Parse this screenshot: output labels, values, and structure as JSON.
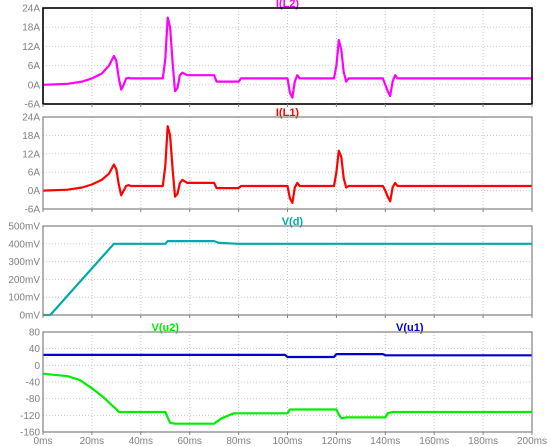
{
  "chart_data": [
    {
      "type": "line",
      "series": [
        {
          "name": "I(L2)",
          "color": "#ff00ff",
          "points": [
            [
              0,
              0
            ],
            [
              10,
              0.3
            ],
            [
              16,
              1
            ],
            [
              20,
              2
            ],
            [
              24,
              3.5
            ],
            [
              27,
              6
            ],
            [
              29,
              9
            ],
            [
              30,
              7.5
            ],
            [
              31,
              2
            ],
            [
              32,
              -1.5
            ],
            [
              33,
              0
            ],
            [
              34,
              2
            ],
            [
              35,
              2.2
            ],
            [
              36,
              2
            ],
            [
              49,
              2
            ],
            [
              50,
              8
            ],
            [
              51,
              21
            ],
            [
              52,
              18
            ],
            [
              53,
              7
            ],
            [
              54,
              -2
            ],
            [
              55,
              -1
            ],
            [
              56,
              3
            ],
            [
              57,
              3.8
            ],
            [
              59,
              3
            ],
            [
              60,
              3
            ],
            [
              70,
              3
            ],
            [
              71,
              1
            ],
            [
              72,
              1
            ],
            [
              80,
              1
            ],
            [
              81,
              2
            ],
            [
              82,
              2
            ],
            [
              99,
              2
            ],
            [
              100,
              2
            ],
            [
              101,
              -2.5
            ],
            [
              102,
              -4
            ],
            [
              103,
              1
            ],
            [
              104,
              3
            ],
            [
              105,
              2
            ],
            [
              106,
              2
            ],
            [
              119,
              2
            ],
            [
              120,
              6
            ],
            [
              121,
              14
            ],
            [
              122,
              11
            ],
            [
              123,
              4
            ],
            [
              124,
              1
            ],
            [
              125,
              2
            ],
            [
              139,
              2
            ],
            [
              140,
              0
            ],
            [
              141,
              -2
            ],
            [
              142,
              -3.5
            ],
            [
              143,
              1
            ],
            [
              144,
              3
            ],
            [
              145,
              2
            ],
            [
              200,
              2
            ]
          ]
        }
      ],
      "xlim": [
        0,
        200
      ],
      "ylim": [
        -6,
        24
      ],
      "yticks": [
        "24A",
        "18A",
        "12A",
        "6A",
        "0A",
        "-6A"
      ],
      "legend": "top-center"
    },
    {
      "type": "line",
      "series": [
        {
          "name": "I(L1)",
          "color": "#ff0000",
          "points": [
            [
              0,
              0
            ],
            [
              10,
              0.3
            ],
            [
              16,
              1
            ],
            [
              20,
              2
            ],
            [
              24,
              3.5
            ],
            [
              27,
              5.5
            ],
            [
              29,
              8.5
            ],
            [
              30,
              7
            ],
            [
              31,
              2
            ],
            [
              32,
              -1.5
            ],
            [
              33,
              0
            ],
            [
              34,
              1.5
            ],
            [
              35,
              1.8
            ],
            [
              36,
              1.5
            ],
            [
              49,
              1.5
            ],
            [
              50,
              8
            ],
            [
              51,
              21
            ],
            [
              52,
              18
            ],
            [
              53,
              7
            ],
            [
              54,
              -2
            ],
            [
              55,
              -1
            ],
            [
              56,
              2.5
            ],
            [
              57,
              3.5
            ],
            [
              59,
              2.5
            ],
            [
              60,
              2.5
            ],
            [
              70,
              2.5
            ],
            [
              71,
              0.8
            ],
            [
              72,
              0.8
            ],
            [
              80,
              0.8
            ],
            [
              81,
              1.5
            ],
            [
              82,
              1.5
            ],
            [
              99,
              1.5
            ],
            [
              100,
              1.5
            ],
            [
              101,
              -2.5
            ],
            [
              102,
              -4
            ],
            [
              103,
              1
            ],
            [
              104,
              2.5
            ],
            [
              105,
              1.5
            ],
            [
              106,
              1.5
            ],
            [
              119,
              1.5
            ],
            [
              120,
              6
            ],
            [
              121,
              13
            ],
            [
              122,
              11
            ],
            [
              123,
              4
            ],
            [
              124,
              1
            ],
            [
              125,
              1.5
            ],
            [
              139,
              1.5
            ],
            [
              140,
              0
            ],
            [
              141,
              -2
            ],
            [
              142,
              -3.5
            ],
            [
              143,
              1
            ],
            [
              144,
              2.5
            ],
            [
              145,
              1.5
            ],
            [
              200,
              1.5
            ]
          ]
        }
      ],
      "xlim": [
        0,
        200
      ],
      "ylim": [
        -6,
        24
      ],
      "yticks": [
        "24A",
        "18A",
        "12A",
        "6A",
        "0A",
        "-6A"
      ],
      "legend": "top-center"
    },
    {
      "type": "line",
      "series": [
        {
          "name": "V(d)",
          "color": "#00aaaa",
          "points": [
            [
              0,
              0
            ],
            [
              3,
              0
            ],
            [
              29,
              400
            ],
            [
              50,
              400
            ],
            [
              51,
              415
            ],
            [
              70,
              415
            ],
            [
              72,
              405
            ],
            [
              80,
              400
            ],
            [
              200,
              400
            ]
          ]
        }
      ],
      "xlim": [
        0,
        200
      ],
      "ylim": [
        0,
        500
      ],
      "yticks": [
        "500mV",
        "400mV",
        "300mV",
        "200mV",
        "100mV",
        "0mV"
      ],
      "legend": "top-center"
    },
    {
      "type": "line",
      "series": [
        {
          "name": "V(u2)",
          "color": "#00ee00",
          "points": [
            [
              0,
              -20
            ],
            [
              10,
              -26
            ],
            [
              15,
              -35
            ],
            [
              20,
              -55
            ],
            [
              25,
              -78
            ],
            [
              28,
              -95
            ],
            [
              30,
              -105
            ],
            [
              31,
              -112
            ],
            [
              50,
              -112
            ],
            [
              51,
              -125
            ],
            [
              52,
              -138
            ],
            [
              54,
              -140
            ],
            [
              60,
              -140
            ],
            [
              70,
              -140
            ],
            [
              73,
              -127
            ],
            [
              78,
              -115
            ],
            [
              100,
              -115
            ],
            [
              101,
              -106
            ],
            [
              120,
              -106
            ],
            [
              121,
              -118
            ],
            [
              122,
              -127
            ],
            [
              124,
              -125
            ],
            [
              140,
              -125
            ],
            [
              141,
              -115
            ],
            [
              143,
              -112
            ],
            [
              200,
              -112
            ]
          ]
        },
        {
          "name": "V(u1)",
          "color": "#0000cc",
          "points": [
            [
              0,
              25
            ],
            [
              99,
              25
            ],
            [
              100,
              20
            ],
            [
              119,
              20
            ],
            [
              120,
              27
            ],
            [
              139,
              27
            ],
            [
              140,
              24
            ],
            [
              200,
              24
            ]
          ]
        }
      ],
      "xlim": [
        0,
        200
      ],
      "ylim": [
        -160,
        80
      ],
      "yticks": [
        "80",
        "40",
        "0",
        "-40",
        "-80",
        "-120",
        "-160"
      ],
      "legend": "top-center"
    }
  ],
  "x_axis": {
    "ticks": [
      "0ms",
      "20ms",
      "40ms",
      "60ms",
      "80ms",
      "100ms",
      "120ms",
      "140ms",
      "160ms",
      "180ms",
      "200ms"
    ]
  },
  "colors": {
    "grid": "#c8c8c8",
    "frame": "#000000",
    "tick_text": "#808080"
  }
}
